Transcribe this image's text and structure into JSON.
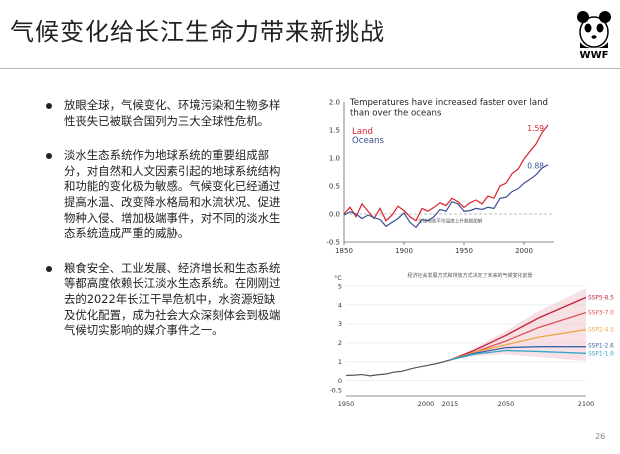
{
  "slide": {
    "title": "气候变化给长江生命力带来新挑战",
    "logo_label": "WWF",
    "page_number": "26",
    "bullets": [
      "放眼全球，气候变化、环境污染和生物多样性丧失已被联合国列为三大全球性危机。",
      "淡水生态系统作为地球系统的重要组成部分，对自然和人文因素引起的地球系统结构和功能的变化极为敏感。气候变化已经通过提高水温、改变降水格局和水流状况、促进物种入侵、增加极端事件，对不同的淡水生态系统造成严重的威胁。",
      "粮食安全、工业发展、经济增长和生态系统等都高度依赖长江淡水生态系统。在刚刚过去的2022年长江干旱危机中，水资源短缺及优化配置，成为社会大众深刻体会到极端气候切实影响的媒介事件之一。"
    ]
  },
  "chart_data": [
    {
      "type": "line",
      "title": "Temperatures have increased faster over land than over the oceans",
      "note": "全球地表平均温度上升数据图解",
      "xlim": [
        1850,
        2025
      ],
      "ylim": [
        -0.5,
        2.0
      ],
      "xticks": [
        "1850",
        "1900",
        "1950",
        "2000"
      ],
      "xtick_values": [
        1850,
        1900,
        1950,
        2000
      ],
      "yticks": [
        "-0.5",
        "0.0",
        "0.5",
        "1.0",
        "1.5",
        "2.0"
      ],
      "ytick_values": [
        -0.5,
        0,
        0.5,
        1.0,
        1.5,
        2.0
      ],
      "colors": {
        "land": "#d6212b",
        "oceans": "#3b4f93"
      },
      "series": [
        {
          "name": "Land",
          "end_label": "1.59",
          "x": [
            1850,
            1855,
            1860,
            1865,
            1870,
            1875,
            1880,
            1885,
            1890,
            1895,
            1900,
            1905,
            1910,
            1915,
            1920,
            1925,
            1930,
            1935,
            1940,
            1945,
            1950,
            1955,
            1960,
            1965,
            1970,
            1975,
            1980,
            1985,
            1990,
            1995,
            2000,
            2005,
            2010,
            2015,
            2020
          ],
          "values": [
            0.0,
            0.12,
            -0.05,
            0.18,
            0.05,
            -0.08,
            0.1,
            -0.12,
            -0.02,
            0.14,
            0.06,
            -0.05,
            -0.12,
            0.1,
            0.05,
            0.12,
            0.2,
            0.15,
            0.28,
            0.22,
            0.12,
            0.2,
            0.25,
            0.18,
            0.32,
            0.28,
            0.5,
            0.55,
            0.72,
            0.8,
            0.98,
            1.12,
            1.25,
            1.45,
            1.59
          ]
        },
        {
          "name": "Oceans",
          "end_label": "0.88",
          "x": [
            1850,
            1855,
            1860,
            1865,
            1870,
            1875,
            1880,
            1885,
            1890,
            1895,
            1900,
            1905,
            1910,
            1915,
            1920,
            1925,
            1930,
            1935,
            1940,
            1945,
            1950,
            1955,
            1960,
            1965,
            1970,
            1975,
            1980,
            1985,
            1990,
            1995,
            2000,
            2005,
            2010,
            2015,
            2020
          ],
          "values": [
            -0.02,
            0.04,
            0.0,
            -0.08,
            -0.02,
            -0.06,
            -0.1,
            -0.22,
            -0.15,
            -0.08,
            0.02,
            -0.15,
            -0.24,
            -0.1,
            -0.12,
            -0.05,
            0.08,
            0.05,
            0.22,
            0.18,
            0.05,
            0.06,
            0.1,
            0.08,
            0.12,
            0.1,
            0.28,
            0.3,
            0.4,
            0.45,
            0.55,
            0.62,
            0.7,
            0.82,
            0.88
          ]
        }
      ]
    },
    {
      "type": "line",
      "title": "经济社会发展方式和排放方式决定了未来的气候变化前景",
      "yunit": "°C",
      "xlim": [
        1950,
        2100
      ],
      "ylim": [
        -0.8,
        5
      ],
      "xticks": [
        "1950",
        "2000",
        "2015",
        "2050",
        "2100"
      ],
      "xtick_values": [
        1950,
        2000,
        2015,
        2050,
        2100
      ],
      "yticks": [
        "5",
        "4",
        "3",
        "2",
        "1",
        "0",
        "-0.5"
      ],
      "ytick_values": [
        5,
        4,
        3,
        2,
        1,
        0,
        -0.5
      ],
      "historical": {
        "x": [
          1950,
          1955,
          1960,
          1965,
          1970,
          1975,
          1980,
          1985,
          1990,
          1995,
          2000,
          2005,
          2010,
          2015
        ],
        "values": [
          0.28,
          0.3,
          0.33,
          0.26,
          0.32,
          0.36,
          0.46,
          0.5,
          0.62,
          0.72,
          0.8,
          0.88,
          0.98,
          1.1
        ],
        "color": "#555555"
      },
      "series": [
        {
          "name": "SSP5-8.5",
          "x": [
            2015,
            2030,
            2050,
            2070,
            2100
          ],
          "values": [
            1.1,
            1.6,
            2.4,
            3.3,
            4.4
          ],
          "color": "#c4203a"
        },
        {
          "name": "SSP3-7.0",
          "x": [
            2015,
            2030,
            2050,
            2070,
            2100
          ],
          "values": [
            1.1,
            1.5,
            2.1,
            2.8,
            3.6
          ],
          "color": "#e0525a"
        },
        {
          "name": "SSP2-4.5",
          "x": [
            2015,
            2030,
            2050,
            2070,
            2100
          ],
          "values": [
            1.1,
            1.5,
            1.9,
            2.3,
            2.7
          ],
          "color": "#f0a540"
        },
        {
          "name": "SSP1-2.6",
          "x": [
            2015,
            2030,
            2050,
            2070,
            2100
          ],
          "values": [
            1.1,
            1.45,
            1.75,
            1.8,
            1.8
          ],
          "color": "#3b63a8"
        },
        {
          "name": "SSP1-1.9",
          "x": [
            2015,
            2030,
            2050,
            2070,
            2100
          ],
          "values": [
            1.1,
            1.4,
            1.6,
            1.55,
            1.45
          ],
          "color": "#35a7c9"
        }
      ]
    }
  ]
}
